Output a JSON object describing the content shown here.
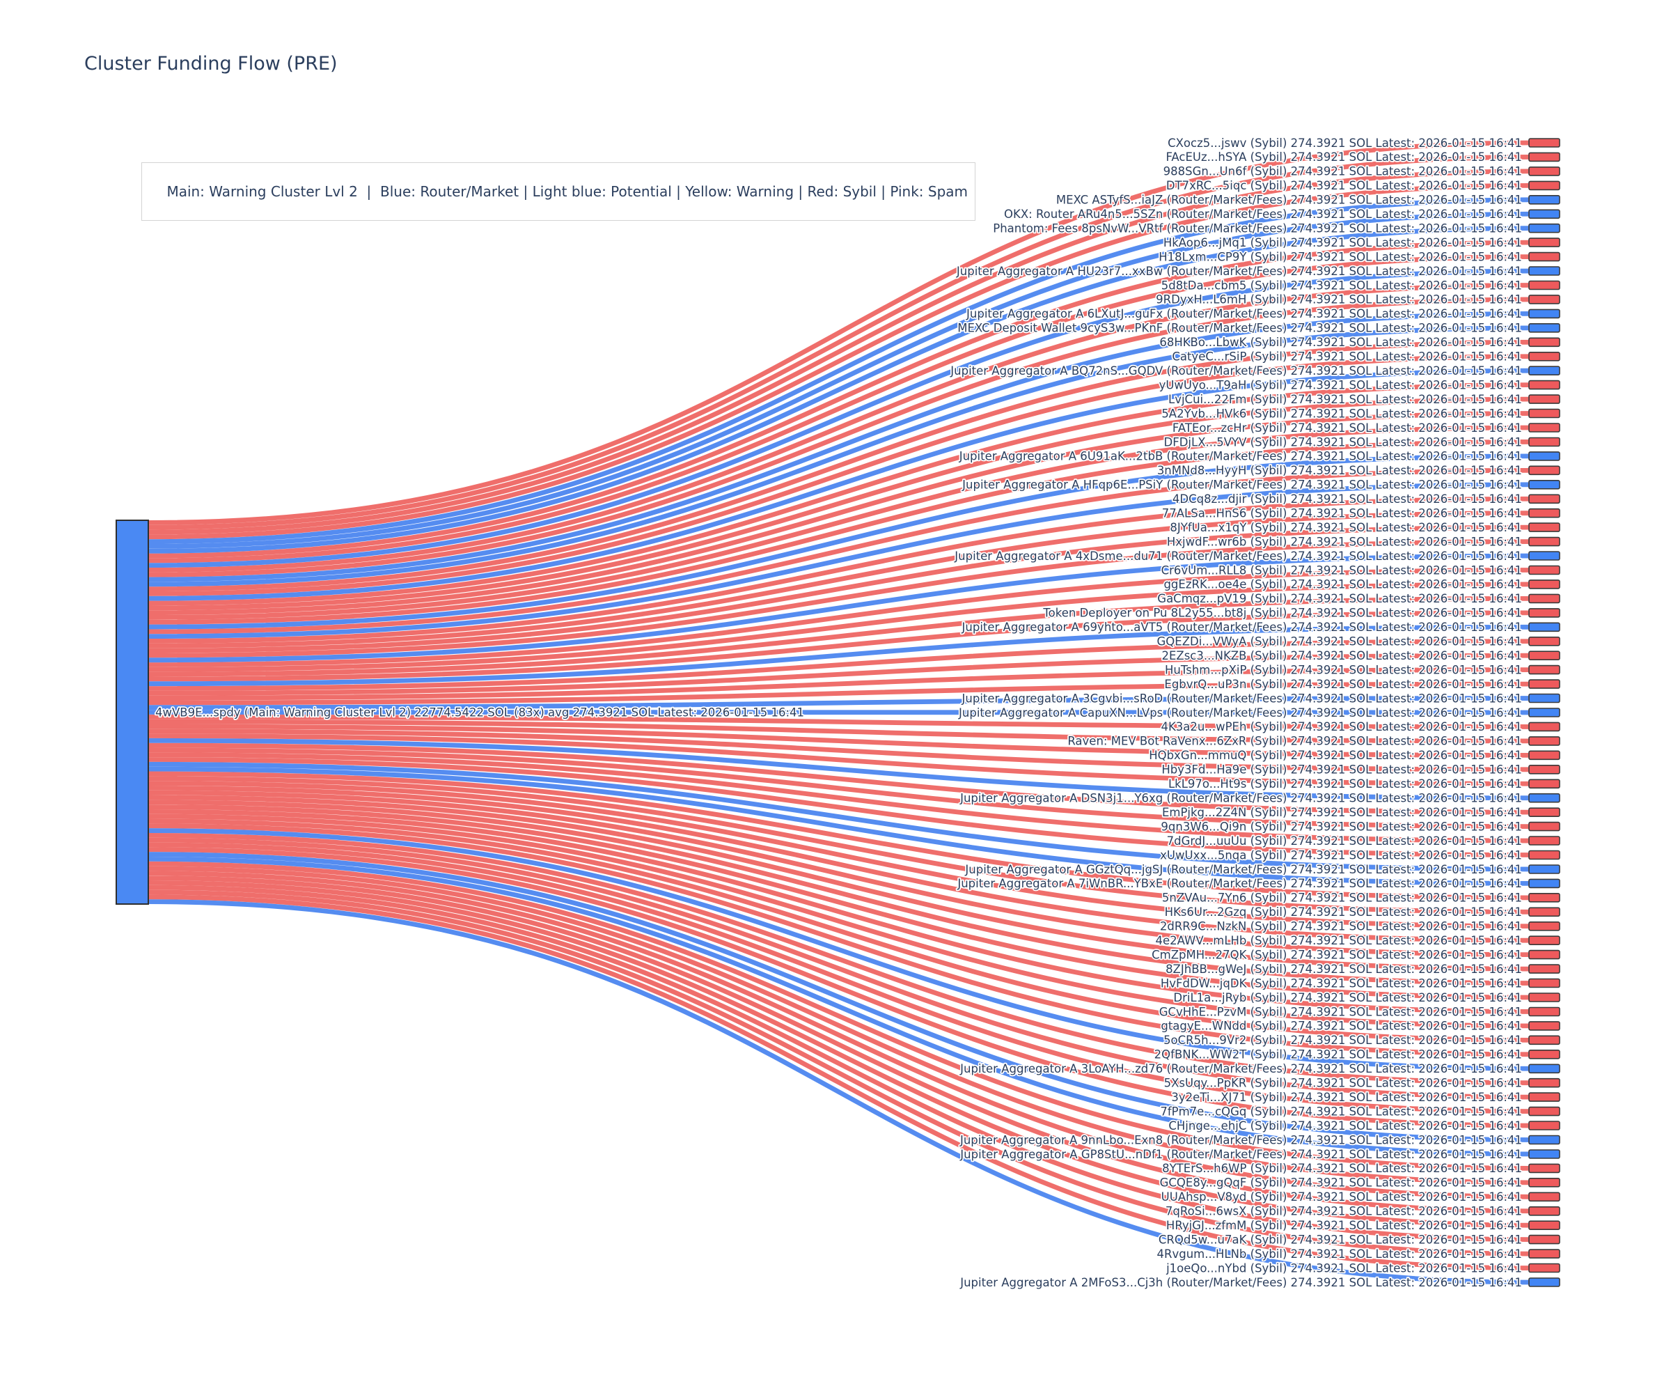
{
  "title": "Cluster Funding Flow (PRE)",
  "legend_text": "Main: Warning Cluster Lvl 2  |  Blue: Router/Market | Light blue: Potential | Yellow: Warning | Red: Sybil | Pink: Spam",
  "colors": {
    "text": "#2b3e5d",
    "sybil_link": "#ed5a57",
    "router_link": "#4c86ef",
    "sybil_node": "#ee5a5c",
    "router_node": "#4285f4",
    "main_node": "#4a89f3",
    "node_border": "#3a3a3a",
    "legend_border": "#d4d4d4"
  },
  "chart_data": {
    "type": "sankey",
    "title": "Cluster Funding Flow (PRE)",
    "flow_value_sol": 274.3921,
    "latest": "2026-01-15 16:41",
    "target_label_suffix": "274.3921 SOL Latest: 2026-01-15 16:41",
    "source": {
      "address": "4wVB9E...spdy",
      "cluster": "Main: Warning Cluster Lvl 2",
      "total_sol": "22774.5422",
      "tx_count": "83x",
      "avg_sol": "274.3921",
      "latest": "2026-01-15 16:41",
      "full_label": "4wVB9E...spdy (Main: Warning Cluster Lvl 2) 22774.5422 SOL (83x) avg 274.3921 SOL Latest: 2026-01-15 16:41"
    },
    "targets": [
      {
        "address": "CXocz5...jswv",
        "category": "Sybil"
      },
      {
        "address": "FAcEUz...hSYA",
        "category": "Sybil"
      },
      {
        "address": "988SGn...Un6f",
        "category": "Sybil"
      },
      {
        "address": "DT7xRC...5iqc",
        "category": "Sybil"
      },
      {
        "address": "MEXC ASTyfS...iaJZ",
        "category": "Router/Market/Fees"
      },
      {
        "address": "OKX: Router ARu4n5...5SZn",
        "category": "Router/Market/Fees"
      },
      {
        "address": "Phantom: Fees 8psNvW...VRtf",
        "category": "Router/Market/Fees"
      },
      {
        "address": "HkAop6...jMq1",
        "category": "Sybil"
      },
      {
        "address": "H18Lxm...CP9Y",
        "category": "Sybil"
      },
      {
        "address": "Jupiter Aggregator A HU23r7...xxBw",
        "category": "Router/Market/Fees"
      },
      {
        "address": "5d8tDa...cbm5",
        "category": "Sybil"
      },
      {
        "address": "9RDyxH...L6mH",
        "category": "Sybil"
      },
      {
        "address": "Jupiter Aggregator A 6LXutJ...guFx",
        "category": "Router/Market/Fees"
      },
      {
        "address": "MEXC Deposit Wallet 9cyS3w...PKnF",
        "category": "Router/Market/Fees"
      },
      {
        "address": "68HKBo...LbwK",
        "category": "Sybil"
      },
      {
        "address": "CatyeC...rSiP",
        "category": "Sybil"
      },
      {
        "address": "Jupiter Aggregator A BQ72nS...GQDV",
        "category": "Router/Market/Fees"
      },
      {
        "address": "yUwUyo...T9aH",
        "category": "Sybil"
      },
      {
        "address": "LvjCui...22Fm",
        "category": "Sybil"
      },
      {
        "address": "5A2Yvb...HVk6",
        "category": "Sybil"
      },
      {
        "address": "FATEor...zcHr",
        "category": "Sybil"
      },
      {
        "address": "DFDjLX...5VYV",
        "category": "Sybil"
      },
      {
        "address": "Jupiter Aggregator A 6U91aK...2tbB",
        "category": "Router/Market/Fees"
      },
      {
        "address": "3nMNd8...HyyH",
        "category": "Sybil"
      },
      {
        "address": "Jupiter Aggregator A HFqp6E...PSiY",
        "category": "Router/Market/Fees"
      },
      {
        "address": "4DCq8z...djir",
        "category": "Sybil"
      },
      {
        "address": "77ALSa...HnS6",
        "category": "Sybil"
      },
      {
        "address": "8JYfUa...x1qY",
        "category": "Sybil"
      },
      {
        "address": "HxjwdF...wr6b",
        "category": "Sybil"
      },
      {
        "address": "Jupiter Aggregator A 4xDsme...du71",
        "category": "Router/Market/Fees"
      },
      {
        "address": "Cr6vUm...RLL8",
        "category": "Sybil"
      },
      {
        "address": "ggEzRK...oe4e",
        "category": "Sybil"
      },
      {
        "address": "GaCmqz...pV19",
        "category": "Sybil"
      },
      {
        "address": "Token Deployer on Pu 8L2y55...bt8j",
        "category": "Sybil"
      },
      {
        "address": "Jupiter Aggregator A 69yhto...aVT5",
        "category": "Router/Market/Fees"
      },
      {
        "address": "GQEZDi...VWyA",
        "category": "Sybil"
      },
      {
        "address": "2EZsc3...NKZB",
        "category": "Sybil"
      },
      {
        "address": "HuTshm...pXiP",
        "category": "Sybil"
      },
      {
        "address": "EgbvrQ...uP3n",
        "category": "Sybil"
      },
      {
        "address": "Jupiter Aggregator A 3Cgvbi...sRoD",
        "category": "Router/Market/Fees"
      },
      {
        "address": "Jupiter Aggregator A CapuXN...LVps",
        "category": "Router/Market/Fees"
      },
      {
        "address": "4K3a2u...wPEh",
        "category": "Sybil"
      },
      {
        "address": "Raven: MEV Bot RaVenx...6ZxR",
        "category": "Sybil"
      },
      {
        "address": "HQbxGn...mmuQ",
        "category": "Sybil"
      },
      {
        "address": "Hby3Fd...Ha9e",
        "category": "Sybil"
      },
      {
        "address": "LkL97o...Ht9s",
        "category": "Sybil"
      },
      {
        "address": "Jupiter Aggregator A DSN3j1...Y6xg",
        "category": "Router/Market/Fees"
      },
      {
        "address": "EmPjkg...2Z4N",
        "category": "Sybil"
      },
      {
        "address": "9qn3W6...Qi9n",
        "category": "Sybil"
      },
      {
        "address": "7dGrdJ...uuUu",
        "category": "Sybil"
      },
      {
        "address": "xUwUxx...5nqa",
        "category": "Sybil"
      },
      {
        "address": "Jupiter Aggregator A GGztQq...jgSJ",
        "category": "Router/Market/Fees"
      },
      {
        "address": "Jupiter Aggregator A 7iWnBR...YBxE",
        "category": "Router/Market/Fees"
      },
      {
        "address": "5nZVAu...7Yn6",
        "category": "Sybil"
      },
      {
        "address": "HKs6Ur...2Gzq",
        "category": "Sybil"
      },
      {
        "address": "2dRR9C...NzkN",
        "category": "Sybil"
      },
      {
        "address": "4e2AWV...mLHb",
        "category": "Sybil"
      },
      {
        "address": "CmZpMH...27QK",
        "category": "Sybil"
      },
      {
        "address": "8ZJhBB...gWeJ",
        "category": "Sybil"
      },
      {
        "address": "HvFdDW...jqDK",
        "category": "Sybil"
      },
      {
        "address": "DriL1a...jRyb",
        "category": "Sybil"
      },
      {
        "address": "GCvHhE...PzvM",
        "category": "Sybil"
      },
      {
        "address": "gtagyE...WNdd",
        "category": "Sybil"
      },
      {
        "address": "5oCR5h...9Vr2",
        "category": "Sybil"
      },
      {
        "address": "2QfBNK...WW2T",
        "category": "Sybil"
      },
      {
        "address": "Jupiter Aggregator A 3LoAYH...zd76",
        "category": "Router/Market/Fees"
      },
      {
        "address": "5XsUqy...PpKR",
        "category": "Sybil"
      },
      {
        "address": "3y2eTi...XJ71",
        "category": "Sybil"
      },
      {
        "address": "7fPm7e...cQGq",
        "category": "Sybil"
      },
      {
        "address": "CHjnge...ehjC",
        "category": "Sybil"
      },
      {
        "address": "Jupiter Aggregator A 9nnLbo...Exn8",
        "category": "Router/Market/Fees"
      },
      {
        "address": "Jupiter Aggregator A GP8StU...nDf1",
        "category": "Router/Market/Fees"
      },
      {
        "address": "8YTErS...h6WP",
        "category": "Sybil"
      },
      {
        "address": "GCQE8y...gQqF",
        "category": "Sybil"
      },
      {
        "address": "UUAhsp...V8yd",
        "category": "Sybil"
      },
      {
        "address": "7qRoSi...6wsX",
        "category": "Sybil"
      },
      {
        "address": "HRyjGJ...zfmM",
        "category": "Sybil"
      },
      {
        "address": "CRQd5w...u7aK",
        "category": "Sybil"
      },
      {
        "address": "4Rvgum...HLNb",
        "category": "Sybil"
      },
      {
        "address": "j1oeQo...nYbd",
        "category": "Sybil"
      },
      {
        "address": "Jupiter Aggregator A 2MFoS3...Cj3h",
        "category": "Router/Market/Fees"
      }
    ]
  }
}
